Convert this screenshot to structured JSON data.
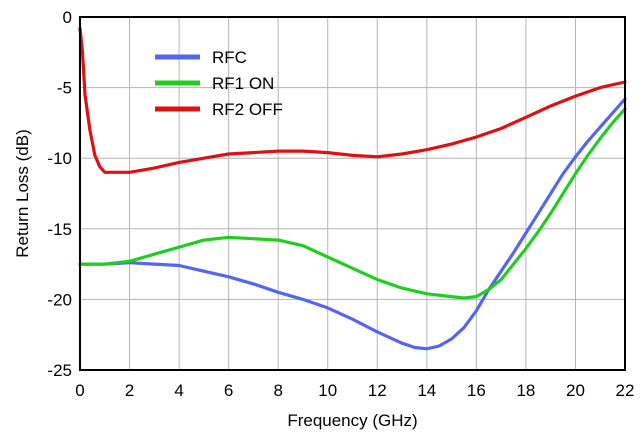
{
  "chart_data": {
    "type": "line",
    "title": "",
    "xlabel": "Frequency (GHz)",
    "ylabel": "Return Loss (dB)",
    "xlim": [
      0,
      22
    ],
    "ylim": [
      -25,
      0
    ],
    "xticks": [
      0,
      2,
      4,
      6,
      8,
      10,
      12,
      14,
      16,
      18,
      20,
      22
    ],
    "yticks": [
      0,
      -5,
      -10,
      -15,
      -20,
      -25
    ],
    "grid": true,
    "legend_position": "top-left",
    "series": [
      {
        "name": "RFC",
        "color": "#5566ee",
        "points": [
          [
            0,
            -17.5
          ],
          [
            1,
            -17.5
          ],
          [
            2,
            -17.4
          ],
          [
            3,
            -17.5
          ],
          [
            4,
            -17.6
          ],
          [
            5,
            -18.0
          ],
          [
            6,
            -18.4
          ],
          [
            7,
            -18.9
          ],
          [
            8,
            -19.5
          ],
          [
            9,
            -20.0
          ],
          [
            10,
            -20.6
          ],
          [
            11,
            -21.4
          ],
          [
            12,
            -22.3
          ],
          [
            13,
            -23.1
          ],
          [
            13.5,
            -23.4
          ],
          [
            14,
            -23.5
          ],
          [
            14.5,
            -23.3
          ],
          [
            15,
            -22.8
          ],
          [
            15.5,
            -22.0
          ],
          [
            16,
            -20.8
          ],
          [
            16.5,
            -19.3
          ],
          [
            17,
            -18.0
          ],
          [
            17.5,
            -16.7
          ],
          [
            18,
            -15.3
          ],
          [
            18.5,
            -13.9
          ],
          [
            19,
            -12.5
          ],
          [
            19.5,
            -11.1
          ],
          [
            20,
            -9.9
          ],
          [
            20.5,
            -8.8
          ],
          [
            21,
            -7.8
          ],
          [
            21.5,
            -6.8
          ],
          [
            22,
            -5.8
          ]
        ]
      },
      {
        "name": "RF1 ON",
        "color": "#22cc22",
        "points": [
          [
            0,
            -17.5
          ],
          [
            1,
            -17.5
          ],
          [
            2,
            -17.3
          ],
          [
            3,
            -16.8
          ],
          [
            4,
            -16.3
          ],
          [
            5,
            -15.8
          ],
          [
            6,
            -15.6
          ],
          [
            7,
            -15.7
          ],
          [
            8,
            -15.8
          ],
          [
            9,
            -16.2
          ],
          [
            10,
            -17.0
          ],
          [
            11,
            -17.8
          ],
          [
            12,
            -18.6
          ],
          [
            13,
            -19.2
          ],
          [
            14,
            -19.6
          ],
          [
            15,
            -19.8
          ],
          [
            15.5,
            -19.9
          ],
          [
            16,
            -19.8
          ],
          [
            16.5,
            -19.3
          ],
          [
            17,
            -18.6
          ],
          [
            17.5,
            -17.5
          ],
          [
            18,
            -16.4
          ],
          [
            18.5,
            -15.2
          ],
          [
            19,
            -13.9
          ],
          [
            19.5,
            -12.5
          ],
          [
            20,
            -11.1
          ],
          [
            20.5,
            -9.8
          ],
          [
            21,
            -8.6
          ],
          [
            21.5,
            -7.5
          ],
          [
            22,
            -6.5
          ]
        ]
      },
      {
        "name": "RF2 OFF",
        "color": "#dd1111",
        "points": [
          [
            0,
            -0.8
          ],
          [
            0.1,
            -2.5
          ],
          [
            0.2,
            -5.5
          ],
          [
            0.4,
            -8.0
          ],
          [
            0.6,
            -9.8
          ],
          [
            0.8,
            -10.6
          ],
          [
            1,
            -11.0
          ],
          [
            2,
            -11.0
          ],
          [
            3,
            -10.7
          ],
          [
            4,
            -10.3
          ],
          [
            5,
            -10.0
          ],
          [
            6,
            -9.7
          ],
          [
            7,
            -9.6
          ],
          [
            8,
            -9.5
          ],
          [
            9,
            -9.5
          ],
          [
            10,
            -9.6
          ],
          [
            11,
            -9.8
          ],
          [
            12,
            -9.9
          ],
          [
            13,
            -9.7
          ],
          [
            14,
            -9.4
          ],
          [
            15,
            -9.0
          ],
          [
            16,
            -8.5
          ],
          [
            17,
            -7.9
          ],
          [
            18,
            -7.1
          ],
          [
            19,
            -6.3
          ],
          [
            20,
            -5.6
          ],
          [
            21,
            -5.0
          ],
          [
            22,
            -4.6
          ]
        ]
      }
    ]
  }
}
